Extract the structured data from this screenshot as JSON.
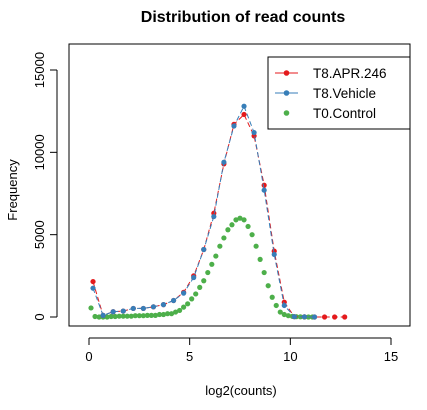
{
  "chart_data": {
    "type": "line",
    "title": "Distribution of read counts",
    "xlabel": "log2(counts)",
    "ylabel": "Frequency",
    "xlim": [
      0,
      15
    ],
    "ylim": [
      0,
      16000
    ],
    "xticks": [
      "0",
      "5",
      "10",
      "15"
    ],
    "xtick_values": [
      0,
      5,
      10,
      15
    ],
    "yticks": [
      "0",
      "5000",
      "10000",
      "15000"
    ],
    "ytick_values": [
      0,
      5000,
      10000,
      15000
    ],
    "grid": false,
    "legend_position": "top-right",
    "series": [
      {
        "name": "T8.APR.246",
        "color": "#E41A1C",
        "line": true,
        "points": [
          [
            0.2,
            2150
          ],
          [
            0.7,
            100
          ],
          [
            1.2,
            320
          ],
          [
            1.7,
            360
          ],
          [
            2.2,
            520
          ],
          [
            2.7,
            520
          ],
          [
            3.2,
            620
          ],
          [
            3.7,
            750
          ],
          [
            4.2,
            1000
          ],
          [
            4.7,
            1500
          ],
          [
            5.2,
            2500
          ],
          [
            5.7,
            4100
          ],
          [
            6.2,
            6300
          ],
          [
            6.7,
            9300
          ],
          [
            7.2,
            11700
          ],
          [
            7.7,
            12300
          ],
          [
            8.2,
            11000
          ],
          [
            8.7,
            8000
          ],
          [
            9.2,
            4000
          ],
          [
            9.7,
            900
          ],
          [
            10.2,
            20
          ],
          [
            10.7,
            10
          ],
          [
            11.2,
            0
          ],
          [
            11.7,
            0
          ],
          [
            12.2,
            0
          ],
          [
            12.7,
            0
          ]
        ]
      },
      {
        "name": "T8.Vehicle",
        "color": "#377EB8",
        "line": true,
        "points": [
          [
            0.2,
            1750
          ],
          [
            0.7,
            100
          ],
          [
            1.2,
            320
          ],
          [
            1.7,
            360
          ],
          [
            2.2,
            520
          ],
          [
            2.7,
            520
          ],
          [
            3.2,
            620
          ],
          [
            3.7,
            750
          ],
          [
            4.2,
            1000
          ],
          [
            4.7,
            1450
          ],
          [
            5.2,
            2400
          ],
          [
            5.7,
            4100
          ],
          [
            6.2,
            6100
          ],
          [
            6.7,
            9400
          ],
          [
            7.2,
            11600
          ],
          [
            7.7,
            12800
          ],
          [
            8.2,
            11200
          ],
          [
            8.7,
            7700
          ],
          [
            9.2,
            3800
          ],
          [
            9.7,
            700
          ],
          [
            10.2,
            20
          ],
          [
            10.7,
            10
          ],
          [
            11.2,
            0
          ]
        ]
      },
      {
        "name": "T0.Control",
        "color": "#4DAF4A",
        "line": false,
        "points": [
          [
            0.1,
            550
          ],
          [
            0.3,
            30
          ],
          [
            0.5,
            0
          ],
          [
            0.7,
            0
          ],
          [
            0.9,
            0
          ],
          [
            1.1,
            30
          ],
          [
            1.3,
            30
          ],
          [
            1.5,
            50
          ],
          [
            1.7,
            50
          ],
          [
            1.9,
            50
          ],
          [
            2.1,
            50
          ],
          [
            2.3,
            80
          ],
          [
            2.5,
            80
          ],
          [
            2.7,
            80
          ],
          [
            2.9,
            100
          ],
          [
            3.1,
            100
          ],
          [
            3.3,
            100
          ],
          [
            3.5,
            150
          ],
          [
            3.7,
            150
          ],
          [
            3.9,
            200
          ],
          [
            4.1,
            200
          ],
          [
            4.3,
            300
          ],
          [
            4.5,
            400
          ],
          [
            4.7,
            600
          ],
          [
            4.9,
            800
          ],
          [
            5.1,
            1100
          ],
          [
            5.3,
            1400
          ],
          [
            5.5,
            1800
          ],
          [
            5.7,
            2200
          ],
          [
            5.9,
            2700
          ],
          [
            6.1,
            3200
          ],
          [
            6.3,
            3700
          ],
          [
            6.5,
            4300
          ],
          [
            6.7,
            4800
          ],
          [
            6.9,
            5300
          ],
          [
            7.1,
            5600
          ],
          [
            7.3,
            5900
          ],
          [
            7.5,
            6000
          ],
          [
            7.7,
            5900
          ],
          [
            7.9,
            5500
          ],
          [
            8.1,
            5000
          ],
          [
            8.3,
            4300
          ],
          [
            8.5,
            3500
          ],
          [
            8.7,
            2700
          ],
          [
            8.9,
            1900
          ],
          [
            9.1,
            1200
          ],
          [
            9.3,
            700
          ],
          [
            9.5,
            300
          ],
          [
            9.7,
            150
          ],
          [
            9.9,
            80
          ],
          [
            10.1,
            40
          ],
          [
            10.3,
            20
          ],
          [
            10.5,
            10
          ],
          [
            10.7,
            0
          ],
          [
            10.9,
            0
          ],
          [
            11.1,
            0
          ]
        ]
      }
    ]
  }
}
